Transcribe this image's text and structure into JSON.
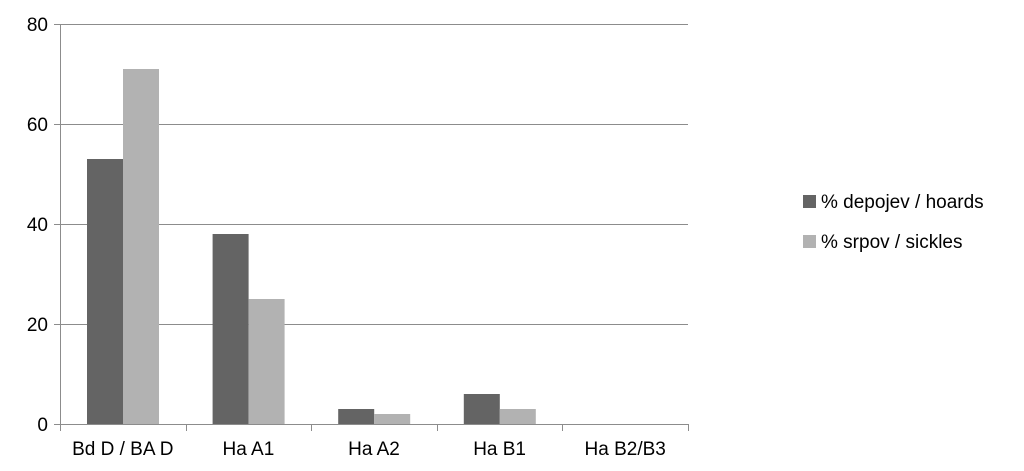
{
  "chart_data": {
    "type": "bar",
    "categories": [
      "Bd D / BA D",
      "Ha A1",
      "Ha A2",
      "Ha B1",
      "Ha B2/B3"
    ],
    "series": [
      {
        "name": "% depojev / hoards",
        "values": [
          53,
          38,
          3,
          6,
          0
        ]
      },
      {
        "name": "% srpov / sickles",
        "values": [
          71,
          25,
          2,
          3,
          0
        ]
      }
    ],
    "ylim": [
      0,
      80
    ],
    "yticks": [
      0,
      20,
      40,
      60,
      80
    ],
    "grid": true,
    "legend_position": "right",
    "colors": {
      "series": [
        "#646464",
        "#b2b2b2"
      ],
      "grid": "#8c8c8c",
      "axis": "#8c8c8c"
    }
  }
}
